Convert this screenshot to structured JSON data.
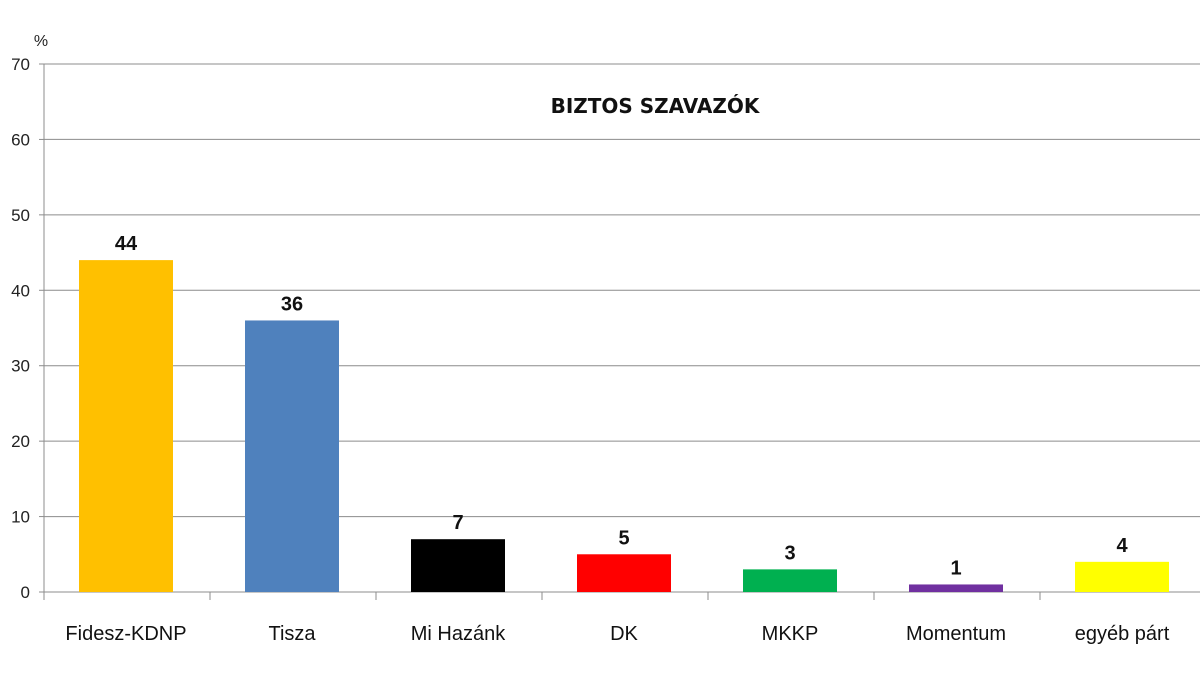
{
  "chart_data": {
    "type": "bar",
    "title": "BIZTOS SZAVAZÓK",
    "ylabel": "%",
    "xlabel": "",
    "ylim": [
      0,
      70
    ],
    "yticks": [
      0,
      10,
      20,
      30,
      40,
      50,
      60,
      70
    ],
    "grid": true,
    "categories": [
      "Fidesz-KDNP",
      "Tisza",
      "Mi Hazánk",
      "DK",
      "MKKP",
      "Momentum",
      "egyéb párt"
    ],
    "values": [
      44,
      36,
      7,
      5,
      3,
      1,
      4
    ],
    "data_labels": [
      "44",
      "36",
      "7",
      "5",
      "3",
      "1",
      "4"
    ],
    "colors": [
      "#FFC000",
      "#4F81BD",
      "#000000",
      "#FF0000",
      "#00B050",
      "#7030A0",
      "#FFFF00"
    ]
  }
}
